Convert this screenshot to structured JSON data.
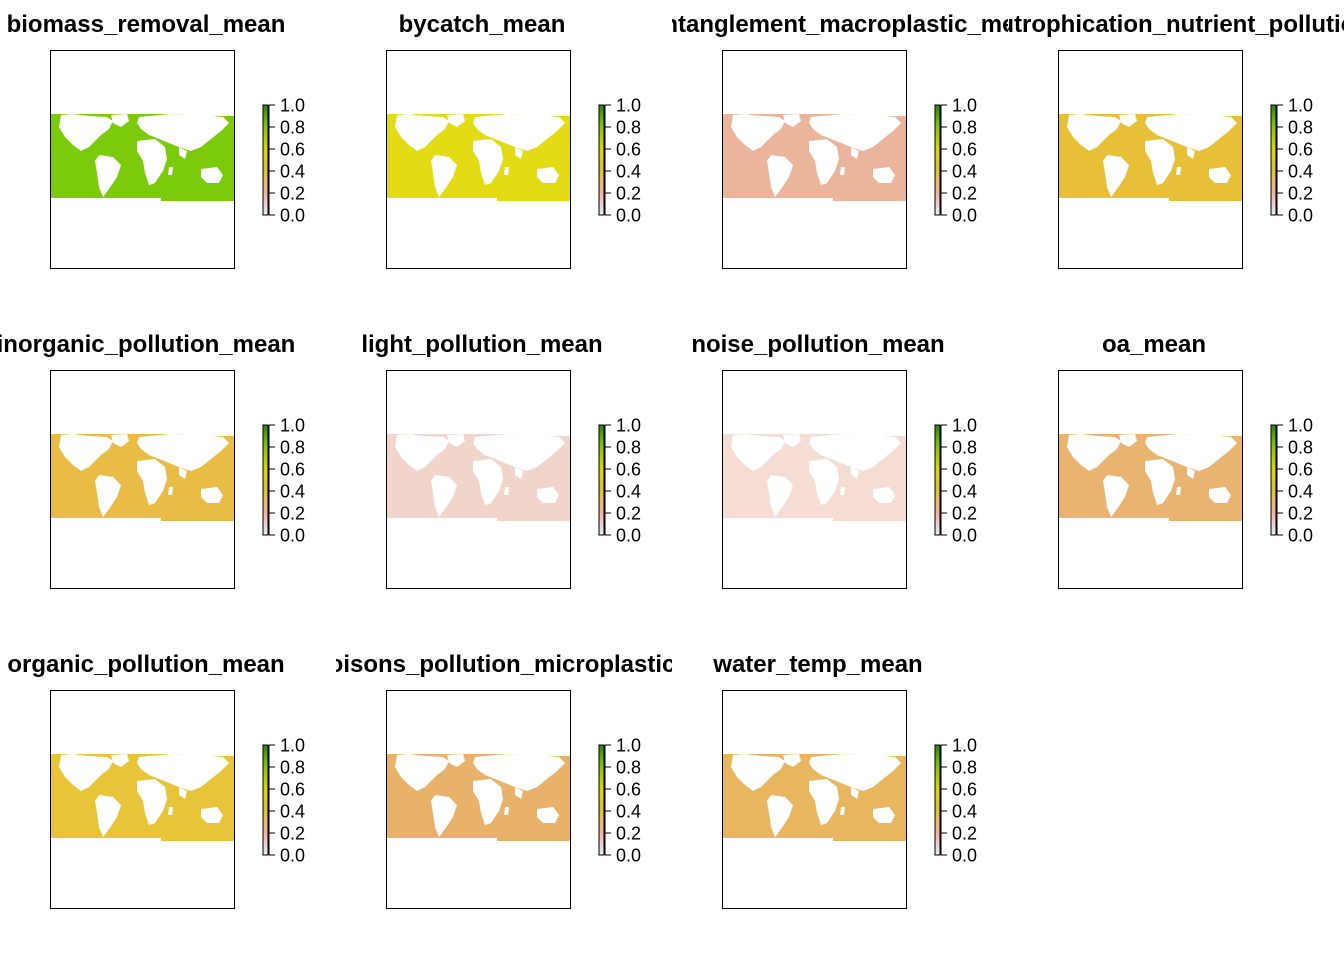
{
  "chart_data": [
    {
      "type": "heatmap",
      "title": "biomass_removal_mean",
      "fill": "#7ccb0a",
      "land": "#ffffff",
      "legend_ticks": [
        "1.0",
        "0.8",
        "0.6",
        "0.4",
        "0.2",
        "0.0"
      ],
      "zlim": [
        0,
        1
      ],
      "approx_value": 0.8
    },
    {
      "type": "heatmap",
      "title": "bycatch_mean",
      "fill": "#e3dc14",
      "land": "#ffffff",
      "legend_ticks": [
        "1.0",
        "0.8",
        "0.6",
        "0.4",
        "0.2",
        "0.0"
      ],
      "zlim": [
        0,
        1
      ],
      "approx_value": 0.55
    },
    {
      "type": "heatmap",
      "title": "entanglement_macroplastic_mean",
      "fill": "#ebb59b",
      "land": "#ffffff",
      "legend_ticks": [
        "1.0",
        "0.8",
        "0.6",
        "0.4",
        "0.2",
        "0.0"
      ],
      "zlim": [
        0,
        1
      ],
      "approx_value": 0.25
    },
    {
      "type": "heatmap",
      "title": "eutrophication_nutrient_pollution_mean",
      "fill": "#e7c038",
      "land": "#ffffff",
      "legend_ticks": [
        "1.0",
        "0.8",
        "0.6",
        "0.4",
        "0.2",
        "0.0"
      ],
      "zlim": [
        0,
        1
      ],
      "approx_value": 0.45
    },
    {
      "type": "heatmap",
      "title": "inorganic_pollution_mean",
      "fill": "#e8bc45",
      "land": "#ffffff",
      "legend_ticks": [
        "1.0",
        "0.8",
        "0.6",
        "0.4",
        "0.2",
        "0.0"
      ],
      "zlim": [
        0,
        1
      ],
      "approx_value": 0.42
    },
    {
      "type": "heatmap",
      "title": "light_pollution_mean",
      "fill": "#f1d5ca",
      "land": "#ffffff",
      "legend_ticks": [
        "1.0",
        "0.8",
        "0.6",
        "0.4",
        "0.2",
        "0.0"
      ],
      "zlim": [
        0,
        1
      ],
      "approx_value": 0.12
    },
    {
      "type": "heatmap",
      "title": "noise_pollution_mean",
      "fill": "#f5ddd4",
      "land": "#ffffff",
      "legend_ticks": [
        "1.0",
        "0.8",
        "0.6",
        "0.4",
        "0.2",
        "0.0"
      ],
      "zlim": [
        0,
        1
      ],
      "approx_value": 0.1
    },
    {
      "type": "heatmap",
      "title": "oa_mean",
      "fill": "#e8b470",
      "land": "#ffffff",
      "legend_ticks": [
        "1.0",
        "0.8",
        "0.6",
        "0.4",
        "0.2",
        "0.0"
      ],
      "zlim": [
        0,
        1
      ],
      "approx_value": 0.35
    },
    {
      "type": "heatmap",
      "title": "organic_pollution_mean",
      "fill": "#e7c438",
      "land": "#ffffff",
      "legend_ticks": [
        "1.0",
        "0.8",
        "0.6",
        "0.4",
        "0.2",
        "0.0"
      ],
      "zlim": [
        0,
        1
      ],
      "approx_value": 0.45
    },
    {
      "type": "heatmap",
      "title": "poisons_pollution_microplastic_mean",
      "fill": "#e9b26a",
      "land": "#ffffff",
      "legend_ticks": [
        "1.0",
        "0.8",
        "0.6",
        "0.4",
        "0.2",
        "0.0"
      ],
      "zlim": [
        0,
        1
      ],
      "approx_value": 0.33
    },
    {
      "type": "heatmap",
      "title": "water_temp_mean",
      "fill": "#e8b65e",
      "land": "#ffffff",
      "legend_ticks": [
        "1.0",
        "0.8",
        "0.6",
        "0.4",
        "0.2",
        "0.0"
      ],
      "zlim": [
        0,
        1
      ],
      "approx_value": 0.36
    }
  ],
  "colorbar": [
    "#f0e9ef",
    "#ebb59b",
    "#e3c235",
    "#dcd800",
    "#8bc400",
    "#1f8c00"
  ]
}
